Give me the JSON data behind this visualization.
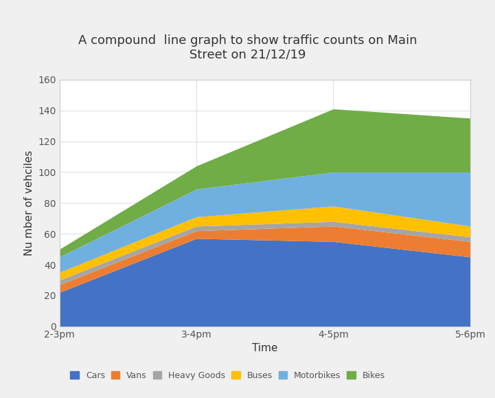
{
  "title": "A compound  line graph to show traffic counts on Main\nStreet on 21/12/19",
  "xlabel": "Time",
  "ylabel": "Nu mber of vehciles",
  "x_labels": [
    "2-3pm",
    "3-4pm",
    "4-5pm",
    "5-6pm"
  ],
  "categories": [
    "Cars",
    "Vans",
    "Heavy Goods",
    "Buses",
    "Motorbikes",
    "Bikes"
  ],
  "colors": [
    "#4472C4",
    "#ED7D31",
    "#A5A5A5",
    "#FFC000",
    "#70B0E0",
    "#70AD47"
  ],
  "data": {
    "Cars": [
      22,
      57,
      55,
      45
    ],
    "Vans": [
      5,
      5,
      10,
      10
    ],
    "Heavy Goods": [
      3,
      3,
      3,
      3
    ],
    "Buses": [
      5,
      6,
      10,
      7
    ],
    "Motorbikes": [
      10,
      18,
      22,
      35
    ],
    "Bikes": [
      5,
      15,
      41,
      35
    ]
  },
  "ylim": [
    0,
    160
  ],
  "yticks": [
    0,
    20,
    40,
    60,
    80,
    100,
    120,
    140,
    160
  ],
  "outer_bg": "#F0F0F0",
  "inner_bg": "#FFFFFF",
  "grid_color": "#E0E0E0",
  "spine_color": "#CCCCCC",
  "title_fontsize": 13,
  "axis_label_fontsize": 11,
  "tick_fontsize": 10,
  "legend_fontsize": 9
}
